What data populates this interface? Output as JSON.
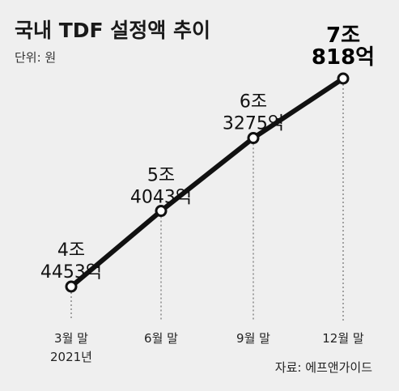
{
  "chart_data": {
    "type": "line",
    "title": "국내 TDF 설정액 추이",
    "unit_label": "단위: 원",
    "categories": [
      "3월 말",
      "6월 말",
      "9월 말",
      "12월 말"
    ],
    "year_label": "2021년",
    "values": [
      44453,
      54043,
      63275,
      70818
    ],
    "value_labels": [
      [
        "4조",
        "4453억"
      ],
      [
        "5조",
        "4043억"
      ],
      [
        "6조",
        "3275억"
      ],
      [
        "7조",
        "818억"
      ]
    ],
    "source": "자료: 에프앤가이드",
    "colors": {
      "line": "#111111",
      "marker_fill": "#ffffff",
      "background": "#efefef",
      "guide": "#555555",
      "last_label": "#000000"
    }
  }
}
